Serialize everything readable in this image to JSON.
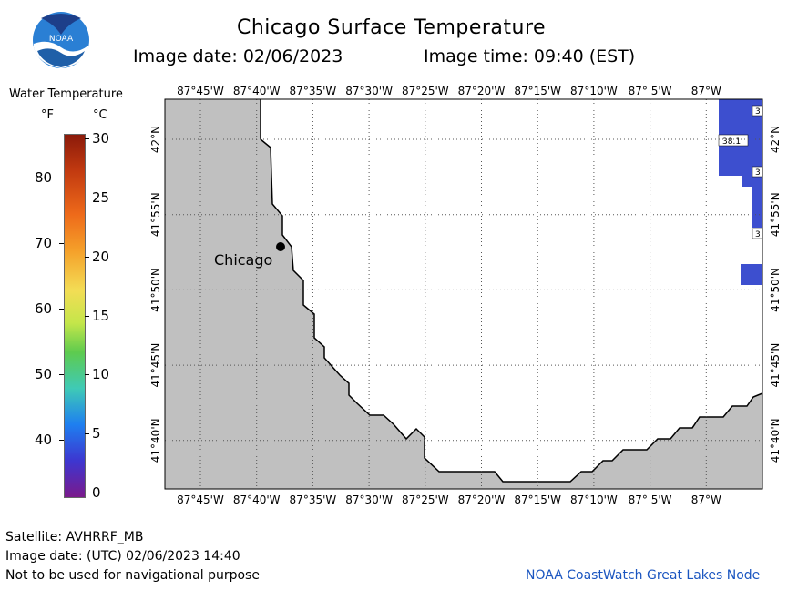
{
  "header": {
    "title": "Chicago Surface Temperature",
    "image_date": "Image date: 02/06/2023",
    "image_time": "Image time: 09:40 (EST)"
  },
  "logo": {
    "text": "NOAA"
  },
  "legend": {
    "title": "Water Temperature",
    "unit_f": "°F",
    "unit_c": "°C",
    "f_ticks": [
      "80",
      "70",
      "60",
      "50",
      "40"
    ],
    "c_ticks": [
      "30",
      "25",
      "20",
      "15",
      "10",
      "5",
      "0"
    ],
    "c_range": [
      0,
      30
    ]
  },
  "map": {
    "lon_labels": [
      "87°45'W",
      "87°40'W",
      "87°35'W",
      "87°30'W",
      "87°25'W",
      "87°20'W",
      "87°15'W",
      "87°10'W",
      "87° 5'W",
      "87°W"
    ],
    "lat_labels": [
      "42°N",
      "41°55'N",
      "41°50'N",
      "41°45'N",
      "41°40'N"
    ],
    "city_label": "Chicago",
    "land_color": "#c0c0c0",
    "water_color": "#ffffff",
    "cloud_color": "#3d4fcf",
    "value_labels": [
      "3",
      "38.1",
      "3",
      "3"
    ]
  },
  "footer": {
    "satellite": "Satellite: AVHRRF_MB",
    "utc_date": "Image date: (UTC) 02/06/2023  14:40",
    "disclaimer": "Not to be used for navigational purpose",
    "credit": "NOAA CoastWatch Great Lakes Node"
  }
}
